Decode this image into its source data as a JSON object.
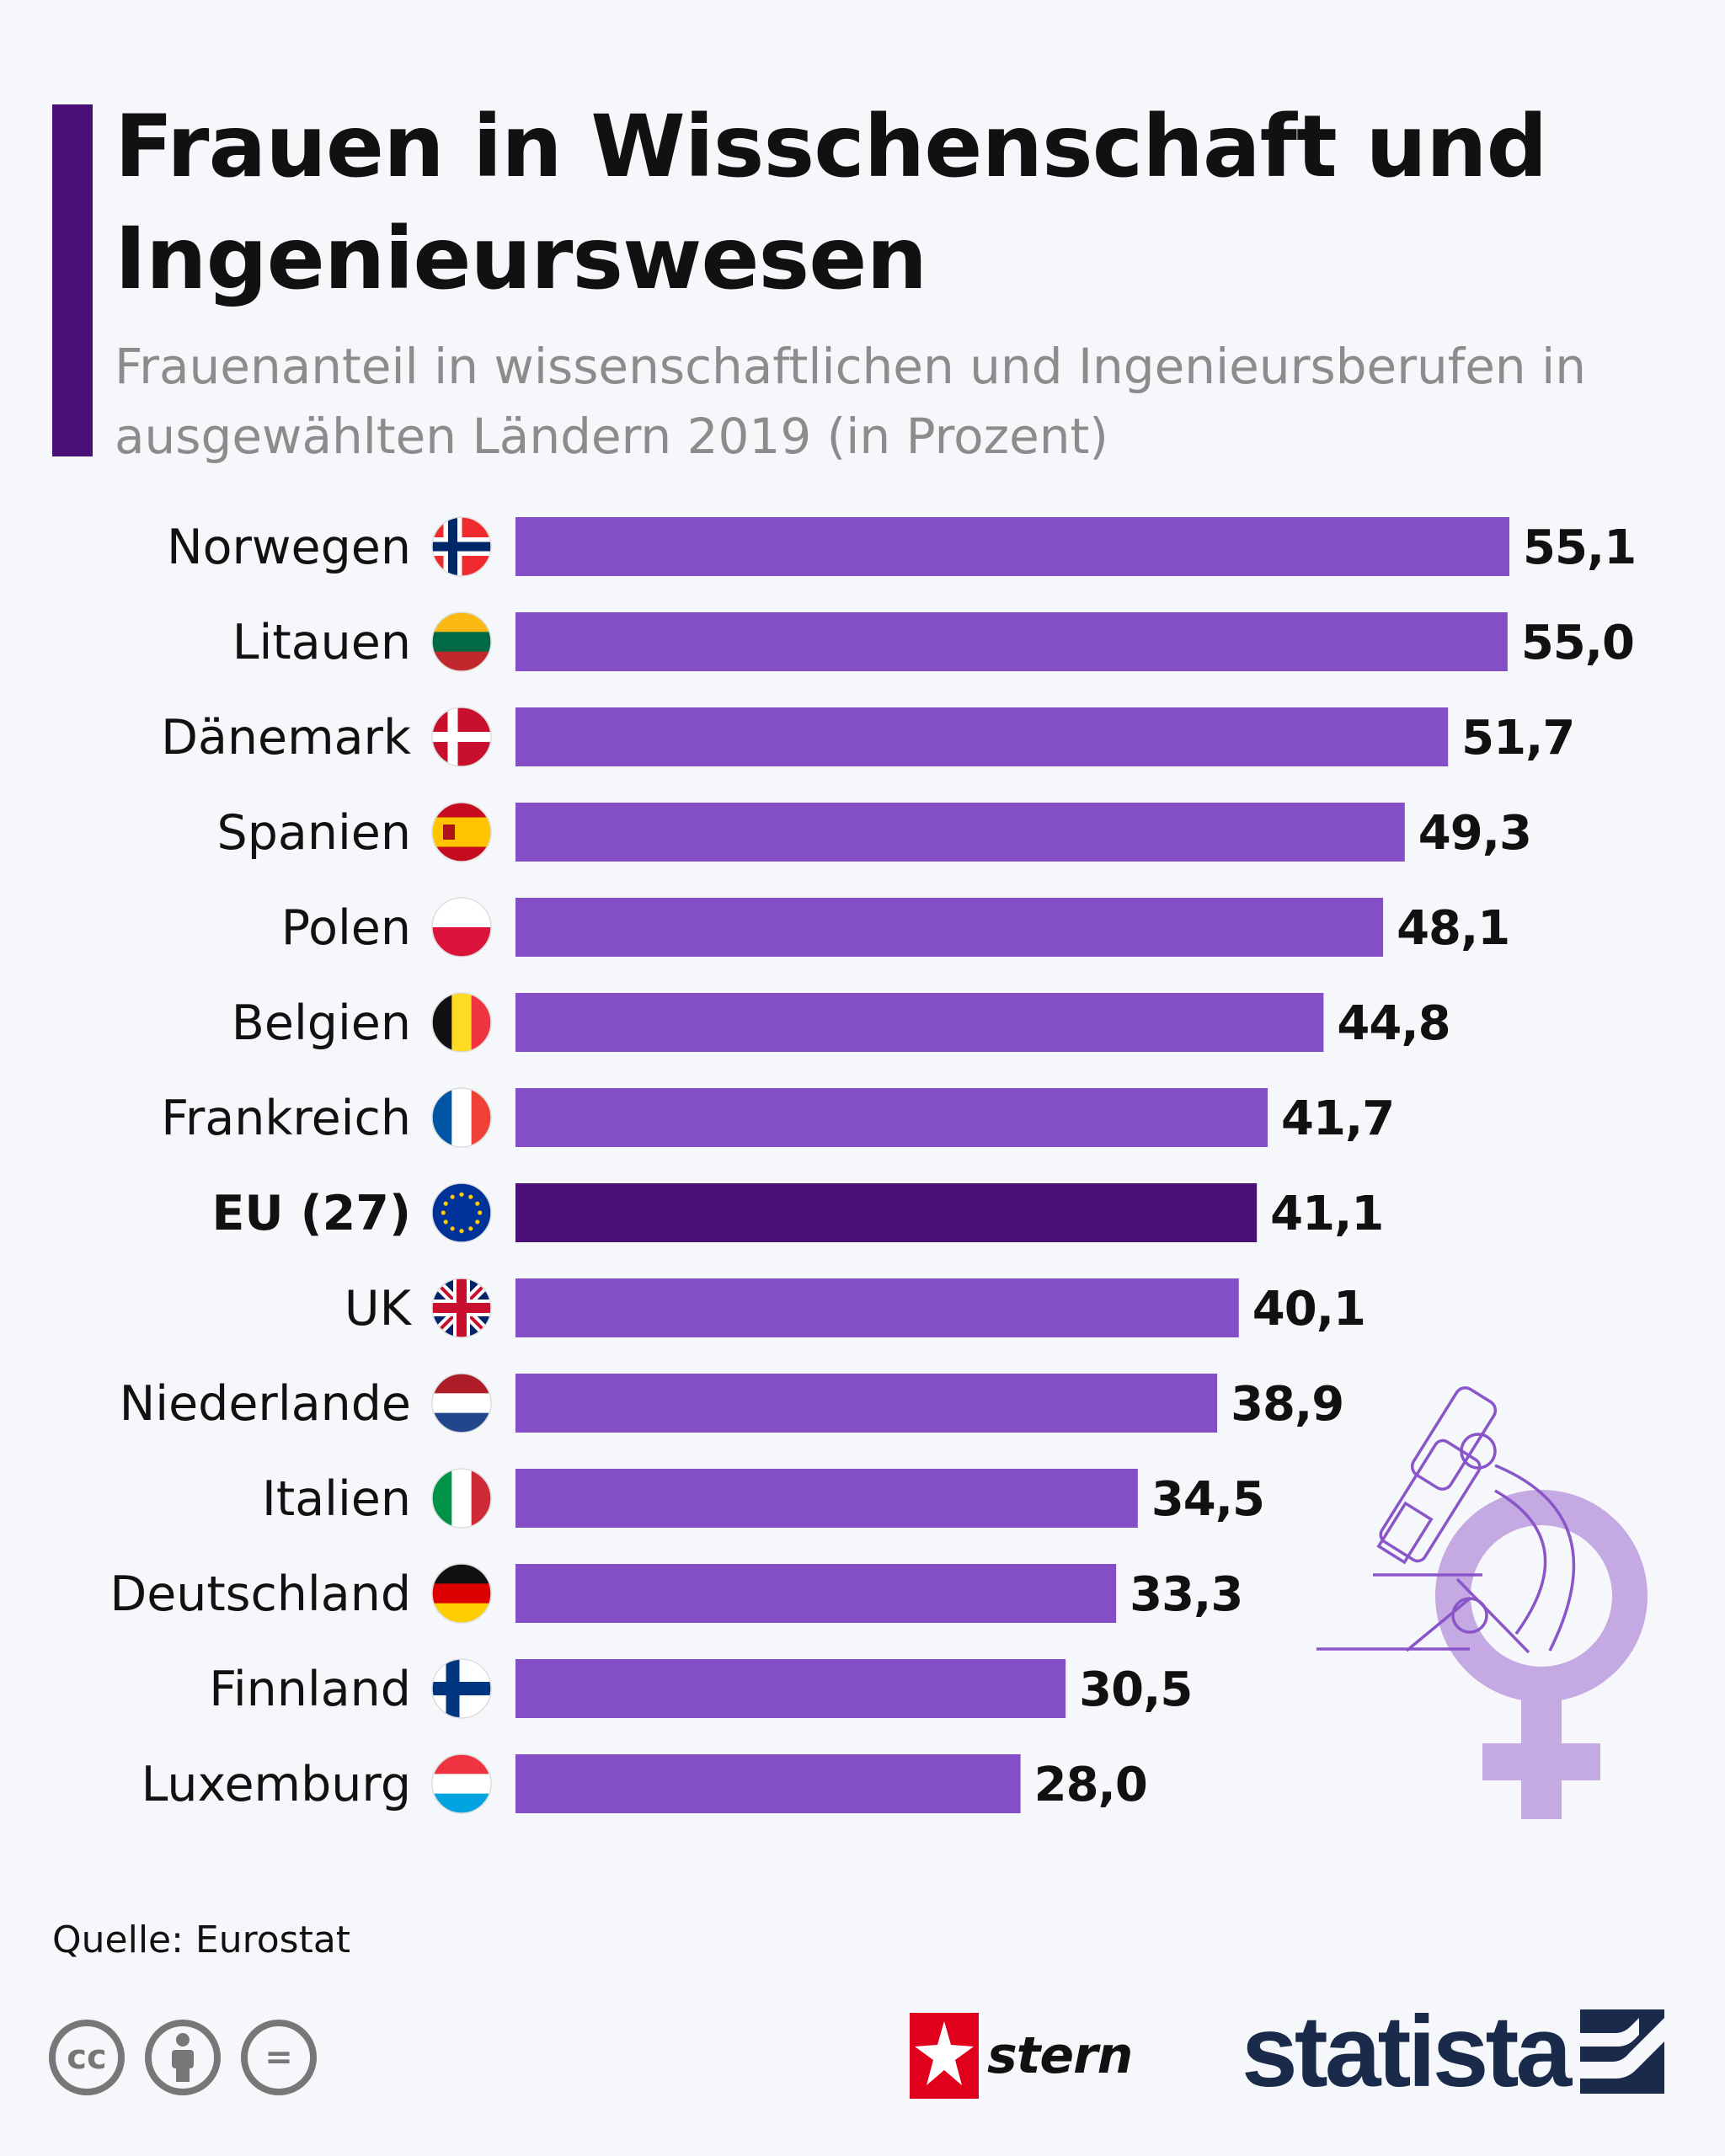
{
  "header": {
    "title": "Frauen in Wisschenschaft und Ingenieurswesen",
    "subtitle": "Frauenanteil in wissenschaftlichen und Ingenieursberufen in ausgewählten Ländern 2019 (in Prozent)"
  },
  "chart_data": {
    "type": "bar",
    "orientation": "horizontal",
    "categories": [
      "Norwegen",
      "Litauen",
      "Dänemark",
      "Spanien",
      "Polen",
      "Belgien",
      "Frankreich",
      "EU (27)",
      "UK",
      "Niederlande",
      "Italien",
      "Deutschland",
      "Finnland",
      "Luxemburg"
    ],
    "values": [
      55.1,
      55.0,
      51.7,
      49.3,
      48.1,
      44.8,
      41.7,
      41.1,
      40.1,
      38.9,
      34.5,
      33.3,
      30.5,
      28.0
    ],
    "value_labels": [
      "55,1",
      "55,0",
      "51,7",
      "49,3",
      "48,1",
      "44,8",
      "41,7",
      "41,1",
      "40,1",
      "38,9",
      "34,5",
      "33,3",
      "30,5",
      "28,0"
    ],
    "highlight_category": "EU (27)",
    "bar_color": "#844fc6",
    "highlight_color": "#4b1078",
    "xlim": [
      0,
      55.1
    ],
    "grid": false,
    "legend": "none"
  },
  "flags": [
    "norway-flag-icon",
    "lithuania-flag-icon",
    "denmark-flag-icon",
    "spain-flag-icon",
    "poland-flag-icon",
    "belgium-flag-icon",
    "france-flag-icon",
    "eu-flag-icon",
    "uk-flag-icon",
    "netherlands-flag-icon",
    "italy-flag-icon",
    "germany-flag-icon",
    "finland-flag-icon",
    "luxembourg-flag-icon"
  ],
  "footer": {
    "source": "Quelle: Eurostat",
    "license_icons": [
      "cc-icon",
      "attribution-icon",
      "no-derivatives-icon"
    ],
    "cc_label": "cc",
    "nd_label": "=",
    "stern_label": "stern",
    "statista_label": "statista"
  },
  "colors": {
    "background": "#f5f7fa",
    "accent": "#4b1078",
    "bar": "#844fc6",
    "bar_highlight": "#4b1078",
    "subtitle": "#8c8c8c",
    "decoration": "#c5a9e3"
  }
}
